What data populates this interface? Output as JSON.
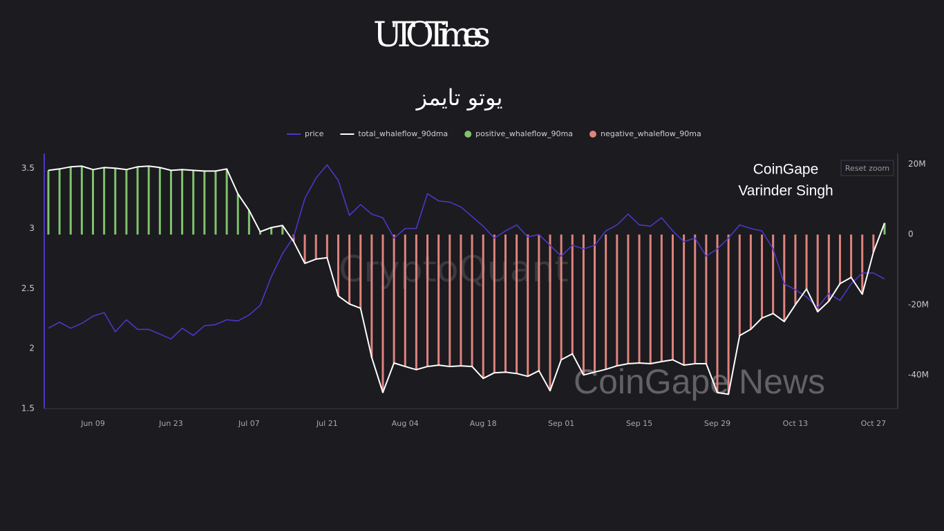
{
  "logo": {
    "title": "UTO Times",
    "subtitle": "يوتو تايمز"
  },
  "chart_data": {
    "type": "combo",
    "categories": [
      null,
      null,
      null,
      null,
      "Jun 09",
      null,
      null,
      null,
      null,
      null,
      null,
      "Jun 23",
      null,
      null,
      null,
      null,
      null,
      null,
      "Jul 07",
      null,
      null,
      null,
      null,
      null,
      null,
      "Jul 21",
      null,
      null,
      null,
      null,
      null,
      null,
      "Aug 04",
      null,
      null,
      null,
      null,
      null,
      null,
      "Aug 18",
      null,
      null,
      null,
      null,
      null,
      null,
      "Sep 01",
      null,
      null,
      null,
      null,
      null,
      null,
      "Sep 15",
      null,
      null,
      null,
      null,
      null,
      null,
      "Sep 29",
      null,
      null,
      null,
      null,
      null,
      null,
      "Oct 13",
      null,
      null,
      null,
      null,
      null,
      null,
      "Oct 27",
      null
    ],
    "ylim": [
      1.5,
      3.625
    ],
    "yticks": [
      1.5,
      2,
      2.5,
      3,
      3.5
    ],
    "y2lim": [
      -49.6,
      23.1
    ],
    "y2ticks": [
      {
        "value": -40,
        "label": "-40M"
      },
      {
        "value": -20,
        "label": "-20M"
      },
      {
        "value": 0,
        "label": "0"
      },
      {
        "value": 20,
        "label": "20M"
      }
    ],
    "series": [
      {
        "name": "price",
        "type": "line",
        "color": "#4b38c8",
        "values": [
          2.17,
          2.22,
          2.17,
          2.21,
          2.27,
          2.3,
          2.14,
          2.24,
          2.16,
          2.16,
          2.12,
          2.08,
          2.17,
          2.11,
          2.19,
          2.2,
          2.24,
          2.23,
          2.28,
          2.36,
          2.6,
          2.79,
          2.93,
          3.25,
          3.42,
          3.53,
          3.4,
          3.11,
          3.2,
          3.12,
          3.09,
          2.92,
          3.0,
          3.0,
          3.29,
          3.23,
          3.22,
          3.18,
          3.1,
          3.02,
          2.92,
          2.98,
          3.03,
          2.93,
          2.95,
          2.86,
          2.77,
          2.86,
          2.83,
          2.86,
          2.98,
          3.03,
          3.12,
          3.03,
          3.02,
          3.09,
          2.98,
          2.89,
          2.92,
          2.77,
          2.83,
          2.92,
          3.03,
          3.0,
          2.98,
          2.83,
          2.54,
          2.49,
          2.43,
          2.34,
          2.46,
          2.4,
          2.54,
          2.63,
          2.63,
          2.58
        ]
      },
      {
        "name": "total_whaleflow_90dma",
        "type": "line",
        "axis": "y2",
        "color": "#ffffff",
        "values": [
          18.3,
          18.7,
          19.3,
          19.5,
          18.5,
          19.1,
          18.9,
          18.5,
          19.3,
          19.5,
          19.1,
          18.3,
          18.5,
          18.3,
          18.1,
          18.1,
          18.7,
          11.6,
          6.9,
          0.8,
          2.0,
          2.6,
          -2,
          -8.2,
          -7,
          -6.6,
          -17.5,
          -19.8,
          -21,
          -35,
          -45,
          -36.6,
          -37.6,
          -38.5,
          -37.6,
          -37.2,
          -37.6,
          -37.4,
          -37.6,
          -41,
          -39.4,
          -39.2,
          -39.6,
          -40.4,
          -38.8,
          -44.5,
          -35.7,
          -34,
          -40,
          -39.2,
          -38.4,
          -37.4,
          -36.8,
          -36.6,
          -36.8,
          -36.2,
          -35.7,
          -37.2,
          -36.8,
          -36.8,
          -45,
          -45.5,
          -28.8,
          -27,
          -23.8,
          -22.5,
          -24.8,
          -20,
          -15.5,
          -22,
          -19,
          -14,
          -12.2,
          -17,
          -5,
          3.3
        ]
      },
      {
        "name": "positive_whaleflow_90ma",
        "type": "bar",
        "axis": "y2",
        "color": "#7fc46c",
        "values": [
          18.3,
          18.7,
          19.3,
          19.5,
          18.5,
          19.1,
          18.9,
          18.5,
          19.3,
          19.5,
          19.1,
          18.3,
          18.5,
          18.3,
          18.1,
          18.1,
          18.7,
          11.6,
          6.9,
          0.8,
          2.0,
          2.6,
          null,
          null,
          null,
          null,
          null,
          null,
          null,
          null,
          null,
          null,
          null,
          null,
          null,
          null,
          null,
          null,
          null,
          null,
          null,
          null,
          null,
          null,
          null,
          null,
          null,
          null,
          null,
          null,
          null,
          null,
          null,
          null,
          null,
          null,
          null,
          null,
          null,
          null,
          null,
          null,
          null,
          null,
          null,
          null,
          null,
          null,
          null,
          null,
          null,
          null,
          null,
          null,
          null,
          3.3
        ]
      },
      {
        "name": "negative_whaleflow_90ma",
        "type": "bar",
        "axis": "y2",
        "color": "#e0837e",
        "values": [
          null,
          null,
          null,
          null,
          null,
          null,
          null,
          null,
          null,
          null,
          null,
          null,
          null,
          null,
          null,
          null,
          null,
          null,
          null,
          null,
          null,
          null,
          -2,
          -8.2,
          -7,
          -6.6,
          -17.5,
          -19.8,
          -21,
          -35,
          -45,
          -36.6,
          -37.6,
          -38.5,
          -37.6,
          -37.2,
          -37.6,
          -37.4,
          -37.6,
          -41,
          -39.4,
          -39.2,
          -39.6,
          -40.4,
          -38.8,
          -44.5,
          -35.7,
          -34,
          -40,
          -39.2,
          -38.4,
          -37.4,
          -36.8,
          -36.6,
          -36.8,
          -36.2,
          -35.7,
          -37.2,
          -36.8,
          -36.8,
          -45,
          -45.5,
          -28.8,
          -27,
          -23.8,
          -22.5,
          -24.8,
          -20,
          -15.5,
          -22,
          -19,
          -14,
          -12.2,
          -17,
          -5,
          null
        ]
      }
    ],
    "annotations": [
      "CoinGape",
      "Varinder Singh"
    ],
    "watermarks": [
      "CryptoQuant",
      "CoinGape News"
    ],
    "button": "Reset zoom"
  }
}
